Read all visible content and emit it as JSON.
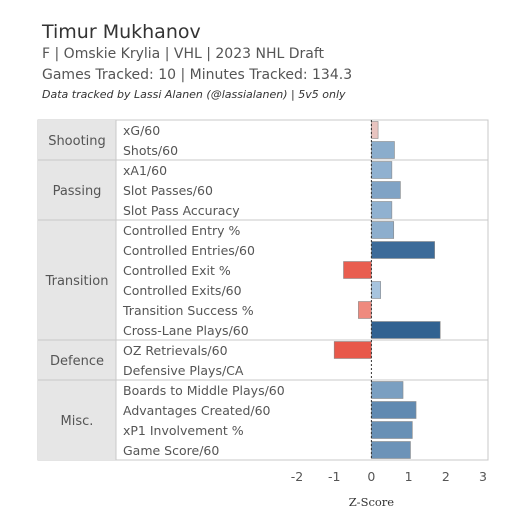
{
  "header": {
    "name": "Timur Mukhanov",
    "info_line": "F | Omskie Krylia | VHL | 2023 NHL Draft",
    "tracking_line": "Games Tracked: 10 | Minutes Tracked: 134.3",
    "credit": "Data tracked by Lassi Alanen (@lassialanen) | 5v5 only"
  },
  "chart_data": {
    "type": "bar",
    "orientation": "horizontal",
    "xlabel": "Z-Score",
    "xlim": [
      -2,
      3
    ],
    "xticks": [
      -2,
      -1,
      0,
      1,
      2,
      3
    ],
    "grid": false,
    "reference_line": 0,
    "groups": [
      {
        "name": "Shooting",
        "metrics": [
          {
            "label": "xG/60",
            "value": 0.18
          },
          {
            "label": "Shots/60",
            "value": 0.62
          }
        ]
      },
      {
        "name": "Passing",
        "metrics": [
          {
            "label": "xA1/60",
            "value": 0.55
          },
          {
            "label": "Slot Passes/60",
            "value": 0.78
          },
          {
            "label": "Slot Pass Accuracy",
            "value": 0.55
          }
        ]
      },
      {
        "name": "Transition",
        "metrics": [
          {
            "label": "Controlled Entry %",
            "value": 0.6
          },
          {
            "label": "Controlled Entries/60",
            "value": 1.7
          },
          {
            "label": "Controlled Exit %",
            "value": -0.75
          },
          {
            "label": "Controlled Exits/60",
            "value": 0.25
          },
          {
            "label": "Transition Success %",
            "value": -0.35
          },
          {
            "label": "Cross-Lane Plays/60",
            "value": 1.85
          }
        ]
      },
      {
        "name": "Defence",
        "metrics": [
          {
            "label": "OZ Retrievals/60",
            "value": -1.0
          },
          {
            "label": "Defensive Plays/CA",
            "value": 0.0
          }
        ]
      },
      {
        "name": "Misc.",
        "metrics": [
          {
            "label": "Boards to Middle Plays/60",
            "value": 0.85
          },
          {
            "label": "Advantages Created/60",
            "value": 1.2
          },
          {
            "label": "xP1 Involvement %",
            "value": 1.1
          },
          {
            "label": "Game Score/60",
            "value": 1.05
          }
        ]
      }
    ],
    "colors": {
      "positive_scale": [
        "#b9d3ea",
        "#2d5f8f"
      ],
      "negative_scale": [
        "#f4b1a6",
        "#e8584a"
      ],
      "near_zero": "#e8c4c0",
      "panel_group_bg": "#e6e6e6",
      "divider": "#c8c8c8"
    }
  }
}
